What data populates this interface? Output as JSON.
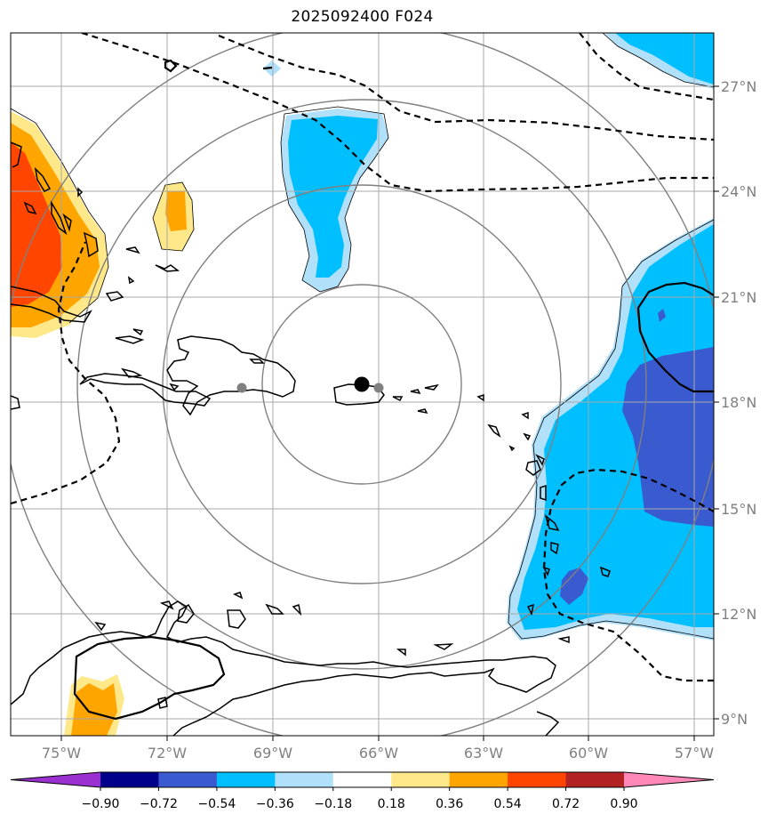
{
  "title": "2025092400 F024",
  "longitude_labels": [
    "75°W",
    "72°W",
    "69°W",
    "66°W",
    "63°W",
    "60°W",
    "57°W"
  ],
  "latitude_labels": [
    "27°N",
    "24°N",
    "21°N",
    "18°N",
    "15°N",
    "12°N",
    "9°N"
  ],
  "colorbar": {
    "ticks": [
      "−0.90",
      "−0.72",
      "−0.54",
      "−0.36",
      "−0.18",
      "0.18",
      "0.36",
      "0.54",
      "0.72",
      "0.90"
    ],
    "colors": [
      "#9b30d0",
      "#00008b",
      "#3a5bd0",
      "#00bfff",
      "#b0e0fa",
      "#ffffff",
      "#ffe88a",
      "#ffa500",
      "#ff4500",
      "#b22222",
      "#ff88b8"
    ]
  },
  "colors": {
    "positive_strong": "#ff4500",
    "positive_mid": "#ffa500",
    "positive_weak": "#ffe88a",
    "negative_weak": "#b0e0fa",
    "negative_mid": "#00bfff",
    "negative_strong": "#3a5bd0",
    "grid": "#a8a8a8",
    "range_rings": "#808080"
  }
}
